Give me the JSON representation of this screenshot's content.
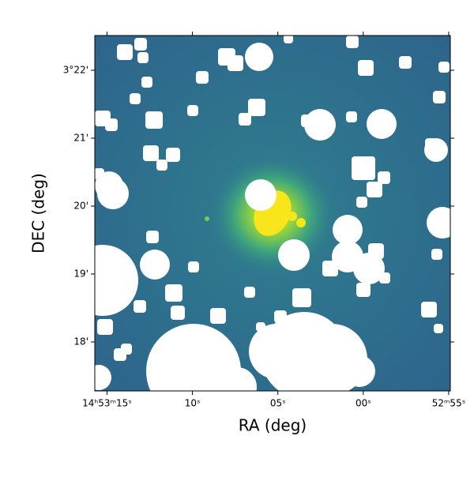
{
  "chart_data": {
    "type": "image",
    "xlabel": "RA (deg)",
    "ylabel": "DEC (deg)",
    "xlim": [
      223.31548,
      223.22877
    ],
    "ylim": [
      3.28798,
      3.37519
    ],
    "xticks": [
      {
        "value": 223.3125,
        "label": "14ʰ53ᵐ15ˢ"
      },
      {
        "value": 223.291667,
        "label": "10ˢ"
      },
      {
        "value": 223.270833,
        "label": "05ˢ"
      },
      {
        "value": 223.25,
        "label": "00ˢ"
      },
      {
        "value": 223.229167,
        "label": "52ᵐ55ˢ"
      }
    ],
    "yticks": [
      {
        "value": 3.366667,
        "label": "3°22'"
      },
      {
        "value": 3.35,
        "label": "21'"
      },
      {
        "value": 3.333333,
        "label": "20'"
      },
      {
        "value": 3.316667,
        "label": "19'"
      },
      {
        "value": 3.3,
        "label": "18'"
      }
    ]
  }
}
